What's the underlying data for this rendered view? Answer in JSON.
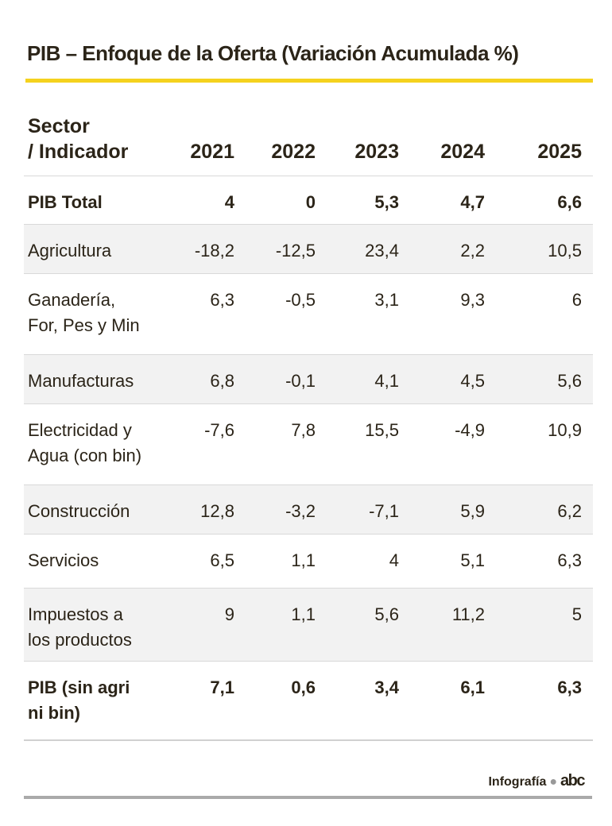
{
  "header": {
    "title": "PIB – Enfoque de la Oferta (Variación Acumulada %)"
  },
  "table": {
    "columns": [
      "Sector\n/ Indicador",
      "2021",
      "2022",
      "2023",
      "2024",
      "2025"
    ],
    "rows": [
      [
        "PIB Total",
        "4",
        "0",
        "5,3",
        "4,7",
        "6,6"
      ],
      [
        "Agricultura",
        "-18,2",
        "-12,5",
        "23,4",
        "2,2",
        "10,5"
      ],
      [
        "Ganadería,\nFor, Pes y Min",
        "6,3",
        "-0,5",
        "3,1",
        "9,3",
        "6"
      ],
      [
        "Manufacturas",
        "6,8",
        "-0,1",
        "4,1",
        "4,5",
        "5,6"
      ],
      [
        "Electricidad y\nAgua (con bin)",
        "-7,6",
        "7,8",
        "15,5",
        "-4,9",
        "10,9"
      ],
      [
        "Construcción",
        "12,8",
        "-3,2",
        "-7,1",
        "5,9",
        "6,2"
      ],
      [
        "Servicios",
        "6,5",
        "1,1",
        "4",
        "5,1",
        "6,3"
      ],
      [
        "Impuestos a\nlos productos",
        "9",
        "1,1",
        "5,6",
        "11,2",
        "5"
      ],
      [
        "PIB (sin agri\nni bin)",
        "7,1",
        "0,6",
        "3,4",
        "6,1",
        "6,3"
      ]
    ]
  },
  "footer": {
    "credit": "Infografía",
    "brand": "abc"
  }
}
